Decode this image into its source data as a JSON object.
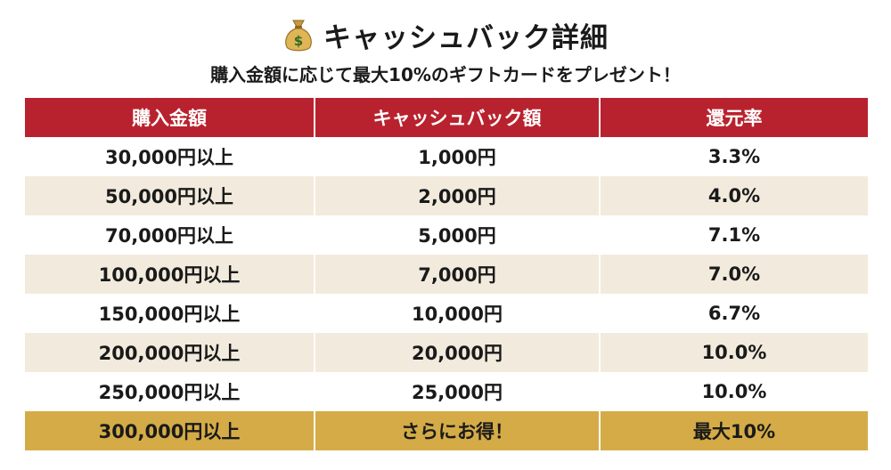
{
  "header": {
    "icon": "money-bag-icon",
    "title": "キャッシュバック詳細",
    "subtitle": "購入金額に応じて最大10%のギフトカードをプレゼント！"
  },
  "table": {
    "columns": [
      "購入金額",
      "キャッシュバック額",
      "還元率"
    ],
    "rows": [
      {
        "amount": "30,000円以上",
        "cashback": "1,000円",
        "rate": "3.3%"
      },
      {
        "amount": "50,000円以上",
        "cashback": "2,000円",
        "rate": "4.0%"
      },
      {
        "amount": "70,000円以上",
        "cashback": "5,000円",
        "rate": "7.1%"
      },
      {
        "amount": "100,000円以上",
        "cashback": "7,000円",
        "rate": "7.0%"
      },
      {
        "amount": "150,000円以上",
        "cashback": "10,000円",
        "rate": "6.7%"
      },
      {
        "amount": "200,000円以上",
        "cashback": "20,000円",
        "rate": "10.0%"
      },
      {
        "amount": "250,000円以上",
        "cashback": "25,000円",
        "rate": "10.0%"
      },
      {
        "amount": "300,000円以上",
        "cashback": "さらにお得！",
        "rate": "最大10%"
      }
    ]
  },
  "colors": {
    "header_red": "#b8222e",
    "stripe_beige": "#f2ebdd",
    "highlight_gold": "#d4ab46"
  }
}
